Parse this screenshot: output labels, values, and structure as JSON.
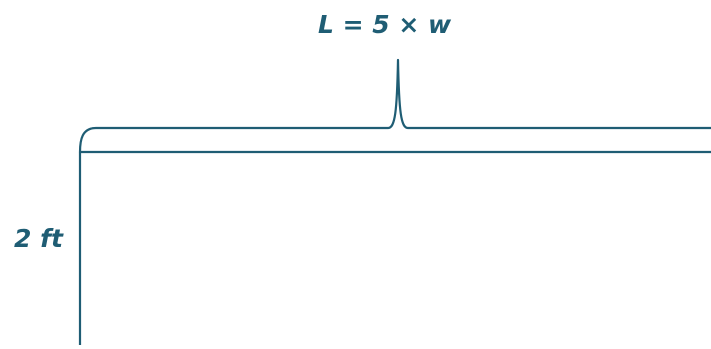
{
  "labels": {
    "length": "L = 5 × w",
    "width": "2 ft"
  },
  "colors": {
    "stroke": "#1f5d74",
    "text": "#1f5d74",
    "background": "#ffffff"
  }
}
